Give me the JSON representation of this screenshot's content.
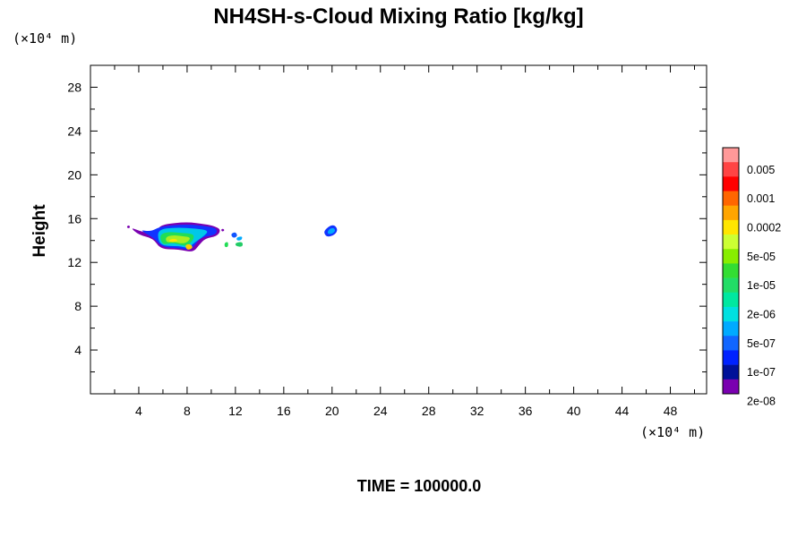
{
  "chart_data": {
    "type": "heatmap",
    "title": "NH4SH-s-Cloud Mixing Ratio [kg/kg]",
    "ylabel": "Height",
    "xunit": "(×10⁴ m)",
    "yunit": "(×10⁴ m)",
    "footer": "TIME = 100000.0",
    "xlim": [
      0,
      51
    ],
    "ylim": [
      0,
      30
    ],
    "x_ticks": [
      "4",
      "8",
      "12",
      "16",
      "20",
      "24",
      "28",
      "32",
      "36",
      "40",
      "44",
      "48"
    ],
    "y_ticks": [
      "4",
      "8",
      "12",
      "16",
      "20",
      "24",
      "28"
    ],
    "colorbar": {
      "labels": [
        "0.005",
        "0.001",
        "0.0002",
        "5e-05",
        "1e-05",
        "2e-06",
        "5e-07",
        "1e-07",
        "2e-08"
      ],
      "colors": [
        "#ff9999",
        "#ff4444",
        "#ff0000",
        "#ff6600",
        "#ffa500",
        "#ffe600",
        "#ccff33",
        "#88ee00",
        "#33dd33",
        "#22dd66",
        "#00e8a0",
        "#00e0e0",
        "#00aaff",
        "#1166ff",
        "#0022ff",
        "#001199",
        "#7a00b0"
      ]
    },
    "regions": [
      {
        "name": "main-cloud-halo",
        "color": "#7a00b0",
        "points": [
          [
            3.3,
            15.2
          ],
          [
            4.0,
            14.9
          ],
          [
            5.0,
            14.6
          ],
          [
            5.5,
            15.0
          ],
          [
            6.0,
            15.5
          ],
          [
            8.0,
            15.7
          ],
          [
            9.5,
            15.5
          ],
          [
            10.3,
            15.3
          ],
          [
            10.8,
            15.0
          ],
          [
            10.5,
            14.4
          ],
          [
            9.5,
            14.2
          ],
          [
            9.0,
            13.6
          ],
          [
            8.5,
            12.9
          ],
          [
            7.3,
            13.2
          ],
          [
            5.8,
            13.2
          ],
          [
            5.2,
            14.2
          ],
          [
            4.0,
            14.5
          ]
        ]
      },
      {
        "name": "main-cloud-blue",
        "color": "#1133ff",
        "points": [
          [
            4.0,
            15.0
          ],
          [
            5.0,
            14.8
          ],
          [
            5.8,
            15.3
          ],
          [
            8.0,
            15.5
          ],
          [
            9.7,
            15.3
          ],
          [
            10.5,
            15.1
          ],
          [
            10.4,
            14.5
          ],
          [
            9.2,
            14.3
          ],
          [
            8.7,
            13.7
          ],
          [
            8.3,
            13.1
          ],
          [
            7.3,
            13.3
          ],
          [
            5.9,
            13.4
          ],
          [
            5.3,
            14.2
          ]
        ]
      },
      {
        "name": "main-cloud-cyan",
        "color": "#00c8e8",
        "points": [
          [
            5.6,
            15.0
          ],
          [
            7.0,
            15.2
          ],
          [
            8.8,
            15.1
          ],
          [
            9.8,
            14.9
          ],
          [
            9.4,
            14.4
          ],
          [
            8.6,
            13.8
          ],
          [
            8.1,
            13.3
          ],
          [
            7.3,
            13.5
          ],
          [
            6.0,
            13.5
          ],
          [
            5.6,
            14.0
          ]
        ]
      },
      {
        "name": "main-cloud-green",
        "color": "#22dd55",
        "points": [
          [
            5.8,
            14.6
          ],
          [
            6.5,
            14.8
          ],
          [
            7.5,
            14.7
          ],
          [
            8.6,
            14.6
          ],
          [
            8.5,
            14.0
          ],
          [
            8.0,
            13.5
          ],
          [
            7.4,
            13.6
          ],
          [
            6.8,
            13.8
          ],
          [
            6.1,
            13.6
          ],
          [
            5.8,
            14.0
          ]
        ]
      },
      {
        "name": "main-cloud-yellowgreen",
        "color": "#aaee22",
        "points": [
          [
            6.2,
            14.3
          ],
          [
            6.8,
            14.5
          ],
          [
            7.6,
            14.4
          ],
          [
            8.3,
            14.3
          ],
          [
            8.1,
            13.9
          ],
          [
            7.6,
            13.7
          ],
          [
            6.9,
            13.9
          ],
          [
            6.3,
            13.8
          ]
        ]
      },
      {
        "name": "main-cloud-yellow-a",
        "color": "#ffe600",
        "points": [
          [
            6.4,
            14.0
          ],
          [
            6.9,
            14.2
          ],
          [
            7.3,
            14.0
          ],
          [
            6.8,
            13.8
          ]
        ]
      },
      {
        "name": "main-cloud-yellow-b",
        "color": "#ffcc00",
        "points": [
          [
            7.8,
            13.6
          ],
          [
            8.3,
            13.7
          ],
          [
            8.5,
            13.3
          ],
          [
            8.0,
            13.1
          ]
        ]
      },
      {
        "name": "small-blob-a",
        "color": "#1155ff",
        "points": [
          [
            11.6,
            14.6
          ],
          [
            12.0,
            14.8
          ],
          [
            12.2,
            14.4
          ],
          [
            11.8,
            14.2
          ]
        ]
      },
      {
        "name": "small-blob-b",
        "color": "#00aaff",
        "points": [
          [
            12.1,
            14.3
          ],
          [
            12.6,
            14.4
          ],
          [
            12.5,
            14.0
          ],
          [
            12.1,
            14.0
          ]
        ]
      },
      {
        "name": "small-blob-c",
        "color": "#22dd55",
        "points": [
          [
            11.1,
            13.8
          ],
          [
            11.4,
            13.9
          ],
          [
            11.4,
            13.4
          ],
          [
            11.1,
            13.4
          ]
        ]
      },
      {
        "name": "small-blob-d",
        "color": "#22cc66",
        "points": [
          [
            12.0,
            13.8
          ],
          [
            12.6,
            13.9
          ],
          [
            12.6,
            13.4
          ],
          [
            12.0,
            13.5
          ]
        ]
      },
      {
        "name": "cloud-at-20-halo",
        "color": "#1133ff",
        "points": [
          [
            19.5,
            15.1
          ],
          [
            20.1,
            15.5
          ],
          [
            20.5,
            15.0
          ],
          [
            20.2,
            14.5
          ],
          [
            19.6,
            14.3
          ],
          [
            19.3,
            14.7
          ]
        ]
      },
      {
        "name": "cloud-at-20-core",
        "color": "#00aaff",
        "points": [
          [
            19.7,
            15.0
          ],
          [
            20.1,
            15.2
          ],
          [
            20.3,
            14.9
          ],
          [
            20.0,
            14.6
          ],
          [
            19.6,
            14.6
          ]
        ]
      },
      {
        "name": "streak-a",
        "color": "#7a00b0",
        "points": [
          [
            3.0,
            15.3
          ],
          [
            3.2,
            15.4
          ],
          [
            3.3,
            15.2
          ],
          [
            3.1,
            15.1
          ]
        ]
      },
      {
        "name": "streak-b",
        "color": "#7a00b0",
        "points": [
          [
            10.8,
            15.0
          ],
          [
            11.0,
            15.1
          ],
          [
            11.1,
            14.9
          ],
          [
            10.9,
            14.8
          ]
        ]
      }
    ]
  }
}
